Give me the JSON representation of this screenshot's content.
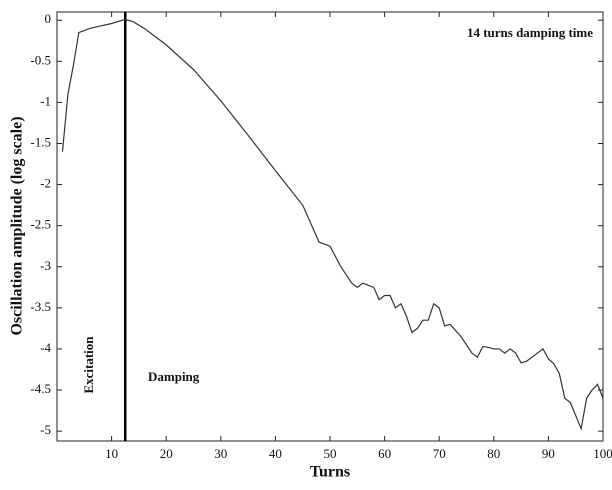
{
  "chart_data": {
    "type": "line",
    "xlabel": "Turns",
    "ylabel": "Oscillation amplitude (log scale)",
    "annotations": [
      "14 turns damping time",
      "Excitation",
      "Damping"
    ],
    "vline_x": 12.5,
    "x": [
      1,
      2,
      3,
      4,
      6,
      8,
      10,
      12,
      13,
      14,
      16,
      18,
      20,
      25,
      30,
      35,
      40,
      45,
      48,
      50,
      52,
      54,
      55,
      56,
      58,
      59,
      60,
      61,
      62,
      63,
      64,
      65,
      66,
      67,
      68,
      69,
      70,
      71,
      72,
      74,
      76,
      77,
      78,
      79,
      80,
      81,
      82,
      83,
      84,
      85,
      86,
      87,
      88,
      89,
      90,
      91,
      92,
      93,
      94,
      96,
      97,
      98,
      99,
      100
    ],
    "series": [
      {
        "name": "amplitude",
        "color": "#333333",
        "values": [
          -1.6,
          -0.9,
          -0.55,
          -0.15,
          -0.1,
          -0.07,
          -0.04,
          0,
          0,
          -0.02,
          -0.1,
          -0.2,
          -0.3,
          -0.6,
          -0.98,
          -1.4,
          -1.83,
          -2.25,
          -2.7,
          -2.75,
          -3.0,
          -3.2,
          -3.25,
          -3.2,
          -3.25,
          -3.4,
          -3.35,
          -3.35,
          -3.5,
          -3.45,
          -3.6,
          -3.8,
          -3.75,
          -3.65,
          -3.65,
          -3.45,
          -3.5,
          -3.72,
          -3.7,
          -3.85,
          -4.05,
          -4.1,
          -3.97,
          -3.98,
          -4.0,
          -4.0,
          -4.05,
          -4.0,
          -4.05,
          -4.17,
          -4.15,
          -4.1,
          -4.05,
          -4.0,
          -4.12,
          -4.18,
          -4.3,
          -4.6,
          -4.65,
          -4.97,
          -4.6,
          -4.5,
          -4.43,
          -4.6
        ]
      }
    ],
    "xlim": [
      0,
      100
    ],
    "xticks": [
      10,
      20,
      30,
      40,
      50,
      60,
      70,
      80,
      90,
      100
    ],
    "ylim": [
      -5.12,
      0.1
    ],
    "yticks": [
      0,
      -0.5,
      -1,
      -1.5,
      -2,
      -2.5,
      -3,
      -3.5,
      -4,
      -4.5,
      -5
    ]
  }
}
